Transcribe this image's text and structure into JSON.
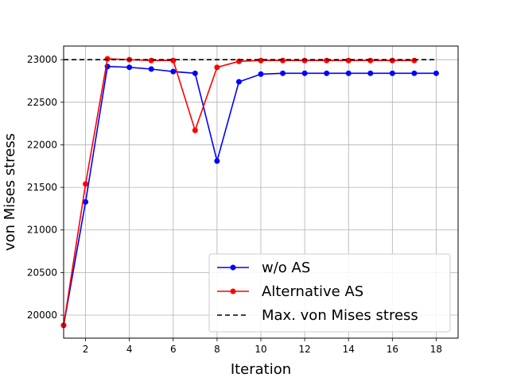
{
  "chart_data": {
    "type": "line",
    "title": "",
    "xlabel": "Iteration",
    "ylabel": "von Mises stress",
    "xlim": [
      1,
      19
    ],
    "ylim": [
      19730,
      23160
    ],
    "xticks": [
      2,
      4,
      6,
      8,
      10,
      12,
      14,
      16,
      18
    ],
    "yticks": [
      20000,
      20500,
      21000,
      21500,
      22000,
      22500,
      23000
    ],
    "grid": true,
    "legend_position": "lower-right",
    "series": [
      {
        "name": "w/o AS",
        "color": "#0000ff",
        "marker": "circle",
        "x": [
          1,
          2,
          3,
          4,
          5,
          6,
          7,
          8,
          9,
          10,
          11,
          12,
          13,
          14,
          15,
          16,
          17,
          18
        ],
        "y": [
          19880,
          21330,
          22920,
          22910,
          22890,
          22860,
          22840,
          21810,
          22740,
          22830,
          22840,
          22840,
          22840,
          22840,
          22840,
          22840,
          22840,
          22840
        ]
      },
      {
        "name": "Alternative AS",
        "color": "#ff0000",
        "marker": "circle",
        "x": [
          1,
          2,
          3,
          4,
          5,
          6,
          7,
          8,
          9,
          10,
          11,
          12,
          13,
          14,
          15,
          16,
          17
        ],
        "y": [
          19880,
          21540,
          23010,
          23000,
          22990,
          22990,
          22170,
          22910,
          22980,
          22990,
          22990,
          22990,
          22990,
          22990,
          22990,
          22990,
          22990
        ]
      },
      {
        "name": "Max. von Mises stress",
        "color": "#000000",
        "style": "dashed",
        "x": [
          1,
          18
        ],
        "y": [
          23000,
          23000
        ]
      }
    ]
  }
}
